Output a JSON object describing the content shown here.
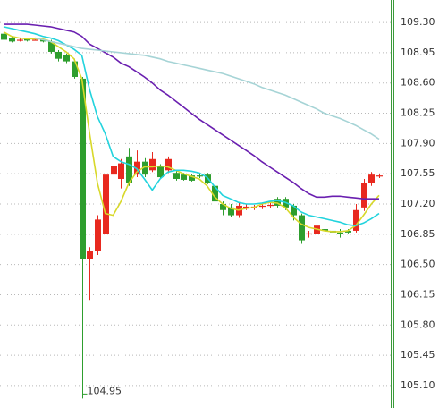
{
  "chart_data": {
    "type": "candlestick",
    "ylim": [
      104.84,
      109.56
    ],
    "yticks": [
      {
        "value": 109.3,
        "label": "109.30"
      },
      108.95,
      {
        "value": 108.6,
        "label": "108.60"
      },
      108.25,
      {
        "value": 107.9,
        "label": "107.90"
      },
      107.55,
      {
        "value": 107.2,
        "label": "107.20"
      },
      106.85,
      {
        "value": 106.5,
        "label": "106.50"
      },
      106.15,
      {
        "value": 105.8,
        "label": "105.80"
      },
      105.45,
      {
        "value": 105.1,
        "label": "105.10"
      }
    ],
    "grid": true,
    "up_color": "#e8291f",
    "down_color": "#2e9e2e",
    "candles": {
      "open": [
        109.17,
        109.12,
        109.1,
        109.11,
        109.1,
        109.1,
        109.08,
        108.96,
        108.92,
        108.85,
        108.65,
        106.56,
        106.66,
        106.85,
        107.54,
        107.49,
        107.75,
        107.54,
        107.69,
        107.59,
        107.64,
        107.59,
        107.56,
        107.54,
        107.53,
        107.53,
        107.54,
        107.41,
        107.2,
        107.16,
        107.07,
        107.16,
        107.16,
        107.17,
        107.18,
        107.26,
        107.26,
        107.18,
        107.07,
        106.85,
        106.85,
        106.91,
        106.89,
        106.87,
        106.89,
        106.89,
        107.16,
        107.44,
        107.52
      ],
      "high": [
        109.2,
        109.14,
        109.12,
        109.12,
        109.12,
        109.12,
        109.1,
        108.98,
        108.94,
        108.88,
        108.67,
        106.7,
        107.07,
        107.57,
        107.9,
        107.72,
        107.85,
        107.82,
        107.73,
        107.8,
        107.66,
        107.75,
        107.58,
        107.56,
        107.55,
        107.55,
        107.56,
        107.44,
        107.23,
        107.2,
        107.22,
        107.2,
        107.19,
        107.2,
        107.21,
        107.28,
        107.28,
        107.2,
        107.09,
        106.89,
        106.97,
        106.93,
        106.91,
        106.91,
        106.91,
        107.2,
        107.49,
        107.57,
        107.55
      ],
      "low": [
        109.08,
        109.07,
        109.08,
        109.08,
        109.09,
        109.07,
        108.94,
        108.85,
        108.83,
        108.65,
        104.95,
        106.09,
        106.61,
        106.83,
        107.52,
        107.38,
        107.41,
        107.51,
        107.51,
        107.57,
        107.49,
        107.56,
        107.47,
        107.47,
        107.46,
        107.5,
        107.43,
        107.07,
        107.07,
        107.05,
        107.04,
        107.13,
        107.13,
        107.14,
        107.15,
        107.16,
        107.13,
        107.01,
        106.74,
        106.81,
        106.83,
        106.87,
        106.85,
        106.81,
        106.86,
        106.87,
        107.12,
        107.41,
        107.5
      ],
      "close": [
        109.1,
        109.08,
        109.1,
        109.09,
        109.1,
        109.08,
        108.96,
        108.88,
        108.85,
        108.67,
        106.56,
        106.66,
        107.02,
        107.54,
        107.64,
        107.67,
        107.44,
        107.69,
        107.54,
        107.72,
        107.51,
        107.72,
        107.49,
        107.48,
        107.47,
        107.52,
        107.44,
        107.23,
        107.13,
        107.07,
        107.18,
        107.17,
        107.17,
        107.18,
        107.19,
        107.18,
        107.16,
        107.07,
        106.78,
        106.86,
        106.95,
        106.89,
        106.87,
        106.86,
        106.87,
        107.13,
        107.44,
        107.54,
        107.53
      ]
    },
    "series": [
      {
        "color": "#d8d82a",
        "values": [
          109.19,
          109.14,
          109.12,
          109.11,
          109.11,
          109.11,
          109.08,
          109.02,
          108.96,
          108.88,
          108.65,
          108.01,
          107.44,
          107.09,
          107.07,
          107.23,
          107.44,
          107.57,
          107.63,
          107.63,
          107.64,
          107.63,
          107.59,
          107.55,
          107.52,
          107.49,
          107.41,
          107.28,
          107.2,
          107.15,
          107.13,
          107.15,
          107.16,
          107.2,
          107.22,
          107.21,
          107.16,
          107.05,
          106.97,
          106.93,
          106.91,
          106.89,
          106.88,
          106.88,
          106.89,
          106.95,
          107.07,
          107.2,
          107.3
        ]
      },
      {
        "color": "#22d3dd",
        "values": [
          109.25,
          109.23,
          109.21,
          109.19,
          109.17,
          109.14,
          109.12,
          109.09,
          109.04,
          108.99,
          108.92,
          108.52,
          108.21,
          108.01,
          107.75,
          107.69,
          107.66,
          107.61,
          107.49,
          107.36,
          107.49,
          107.57,
          107.59,
          107.59,
          107.58,
          107.56,
          107.51,
          107.4,
          107.3,
          107.26,
          107.22,
          107.2,
          107.2,
          107.21,
          107.23,
          107.24,
          107.22,
          107.18,
          107.11,
          107.07,
          107.05,
          107.03,
          107.01,
          106.99,
          106.96,
          106.95,
          106.98,
          107.03,
          107.09
        ]
      },
      {
        "color": "#6a1fb0",
        "values": [
          109.28,
          109.28,
          109.28,
          109.28,
          109.27,
          109.26,
          109.25,
          109.23,
          109.21,
          109.19,
          109.14,
          109.05,
          109.0,
          108.95,
          108.9,
          108.83,
          108.79,
          108.73,
          108.67,
          108.6,
          108.52,
          108.46,
          108.39,
          108.32,
          108.25,
          108.18,
          108.12,
          108.06,
          108.0,
          107.94,
          107.88,
          107.82,
          107.76,
          107.69,
          107.63,
          107.57,
          107.51,
          107.45,
          107.38,
          107.32,
          107.28,
          107.28,
          107.29,
          107.29,
          107.28,
          107.27,
          107.26,
          107.26,
          107.26
        ]
      },
      {
        "color": "#a6d4d6",
        "values": [
          null,
          null,
          null,
          null,
          109.12,
          109.1,
          109.08,
          109.06,
          109.04,
          109.02,
          109.0,
          108.99,
          108.98,
          108.97,
          108.96,
          108.95,
          108.94,
          108.93,
          108.92,
          108.9,
          108.88,
          108.85,
          108.83,
          108.81,
          108.79,
          108.77,
          108.75,
          108.73,
          108.71,
          108.68,
          108.65,
          108.62,
          108.59,
          108.55,
          108.52,
          108.49,
          108.46,
          108.42,
          108.38,
          108.34,
          108.3,
          108.25,
          108.22,
          108.19,
          108.15,
          108.11,
          108.06,
          108.01,
          107.95
        ]
      }
    ],
    "annotations": [
      {
        "label": "104.95",
        "value": 104.95
      }
    ]
  }
}
